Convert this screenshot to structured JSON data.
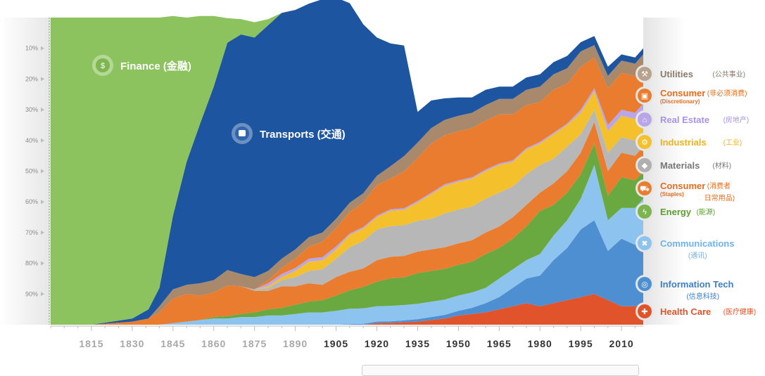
{
  "chart_data": {
    "type": "area",
    "title": "",
    "xlabel": "",
    "ylabel": "",
    "x_ticks": [
      "1815",
      "1830",
      "1845",
      "1860",
      "1875",
      "1890",
      "1905",
      "1920",
      "1935",
      "1950",
      "1965",
      "1980",
      "1995",
      "2010"
    ],
    "y_ticks": [
      "10%",
      "20%",
      "30%",
      "40%",
      "50%",
      "60%",
      "70%",
      "80%",
      "90%"
    ],
    "ylim": [
      0,
      100
    ],
    "xlim": [
      1800,
      2018
    ],
    "x": [
      1800,
      1815,
      1830,
      1836,
      1840,
      1845,
      1850,
      1855,
      1860,
      1865,
      1870,
      1875,
      1880,
      1885,
      1890,
      1895,
      1900,
      1905,
      1910,
      1915,
      1920,
      1925,
      1930,
      1935,
      1940,
      1945,
      1950,
      1955,
      1960,
      1965,
      1970,
      1975,
      1980,
      1985,
      1990,
      1995,
      2000,
      2005,
      2010,
      2015,
      2018
    ],
    "series": [
      {
        "name": "Health Care",
        "values": [
          0,
          0,
          0,
          0,
          0,
          0,
          0,
          0,
          0,
          0,
          0,
          0,
          0,
          0,
          0,
          0,
          0,
          0,
          0,
          0,
          0.5,
          0.6,
          0.8,
          1,
          1.5,
          2,
          3,
          3.5,
          4,
          5,
          6,
          7,
          6,
          7,
          8,
          9,
          10,
          8,
          6,
          6,
          7
        ]
      },
      {
        "name": "Information Tech",
        "values": [
          0,
          0,
          0,
          0,
          0,
          0,
          0,
          0,
          0,
          0,
          0,
          0,
          0,
          0,
          0,
          0,
          0,
          0,
          0.2,
          0.3,
          0.5,
          0.5,
          0.6,
          0.8,
          1,
          1.2,
          1.5,
          2,
          3,
          4,
          6,
          8,
          10,
          14,
          17,
          22,
          24,
          16,
          22,
          20,
          22
        ]
      },
      {
        "name": "Communications",
        "values": [
          0,
          0,
          0,
          0,
          0,
          0.5,
          1,
          1.5,
          2,
          2,
          2.5,
          2.5,
          3,
          3,
          3.5,
          4,
          4,
          4.5,
          5,
          5,
          5,
          5,
          5,
          5,
          5,
          5,
          5,
          5,
          5,
          6,
          6,
          6,
          7,
          8,
          9,
          10,
          18,
          10,
          10,
          12,
          12
        ]
      },
      {
        "name": "Energy",
        "values": [
          0,
          0,
          0,
          0,
          0,
          0,
          0,
          0,
          0.5,
          0.8,
          1,
          1.5,
          2,
          2.5,
          3,
          3.5,
          4,
          5,
          6,
          7,
          8,
          9,
          9,
          10,
          10,
          10,
          10,
          10,
          11,
          10,
          10,
          11,
          14,
          10,
          9,
          8,
          7,
          8,
          10,
          9,
          9
        ]
      },
      {
        "name": "Consumer (Staples)",
        "values": [
          0,
          0,
          1,
          2,
          4,
          8,
          9,
          8,
          8,
          10,
          9,
          7,
          6,
          7,
          6,
          6,
          5,
          6,
          6,
          6,
          7,
          7,
          7,
          7,
          7,
          7,
          7,
          7,
          7,
          7,
          7,
          7,
          6,
          7,
          7,
          7,
          7,
          8,
          8,
          8,
          8
        ]
      },
      {
        "name": "Materials",
        "values": [
          0,
          0,
          0,
          0,
          0,
          0,
          0,
          0,
          0,
          0,
          0,
          0.5,
          1,
          2,
          3,
          4,
          5,
          6,
          8,
          9,
          10,
          10,
          10,
          10,
          10,
          11,
          11,
          11,
          11,
          11,
          10,
          10,
          9,
          8,
          8,
          6,
          4,
          6,
          5,
          5,
          5
        ]
      },
      {
        "name": "Industrials",
        "values": [
          0,
          0,
          0,
          0,
          0,
          0,
          0,
          0,
          0,
          0,
          0,
          0,
          0.5,
          1,
          2,
          3,
          3,
          3,
          4,
          4,
          4,
          5,
          5,
          6,
          8,
          9,
          9,
          9,
          9,
          9,
          8,
          8,
          7,
          8,
          7,
          7,
          6,
          7,
          7,
          7,
          7
        ]
      },
      {
        "name": "Real Estate",
        "values": [
          0,
          0,
          0,
          0,
          0,
          0,
          0,
          0,
          0,
          0,
          0,
          0,
          1,
          1,
          1,
          1,
          1,
          1,
          0.5,
          0.5,
          0.5,
          0.5,
          0.5,
          0.5,
          0.5,
          0.5,
          0.5,
          0.5,
          0.5,
          0.5,
          0.5,
          0.5,
          0.5,
          0.5,
          0.5,
          1,
          1,
          2,
          2,
          2,
          2
        ]
      },
      {
        "name": "Consumer (Discretionary)",
        "values": [
          0,
          0,
          0,
          0,
          0,
          0,
          0,
          0,
          0,
          0,
          0,
          0,
          1,
          2,
          3,
          4,
          5,
          6,
          7,
          8,
          10,
          10,
          12,
          14,
          16,
          16,
          16,
          16,
          16,
          16,
          15,
          14,
          13,
          14,
          13,
          14,
          10,
          12,
          12,
          12,
          12
        ]
      },
      {
        "name": "Utilities",
        "values": [
          0,
          0,
          0,
          0,
          2,
          3,
          3,
          4,
          4,
          5,
          4,
          4,
          3,
          3,
          3,
          3,
          3,
          3,
          3,
          3,
          3,
          4,
          5,
          5,
          5,
          5,
          5,
          5,
          5,
          5,
          5,
          5,
          5,
          5,
          5,
          5,
          4,
          4,
          4,
          4,
          4
        ]
      },
      {
        "name": "Transports",
        "values": [
          0,
          0,
          1,
          3,
          6,
          24,
          40,
          52,
          63,
          74,
          78,
          78,
          80,
          80,
          78,
          76,
          76,
          72,
          65,
          55,
          45,
          40,
          36,
          10,
          9,
          7,
          6,
          5,
          5,
          4,
          4,
          4,
          4,
          4,
          4,
          3,
          3,
          3,
          2,
          2,
          2
        ]
      },
      {
        "name": "Finance",
        "values": [
          100,
          100,
          98,
          95,
          88,
          65,
          47,
          35,
          23,
          8,
          5,
          5,
          2,
          0,
          0,
          0,
          0,
          0,
          0,
          0,
          0,
          0,
          0,
          0,
          0,
          0,
          0,
          0,
          0,
          0,
          0,
          0,
          0,
          0,
          0,
          0,
          0,
          0,
          0,
          0,
          0
        ]
      }
    ],
    "colors": {
      "Health Care": "#e1542b",
      "Information Tech": "#4d8fd1",
      "Communications": "#8cc3ef",
      "Energy": "#6aa93f",
      "Consumer (Staples)": "#ea7c2f",
      "Materials": "#b7b7b7",
      "Industrials": "#f4c12d",
      "Real Estate": "#b9a6e9",
      "Consumer (Discretionary)": "#ea7c2f",
      "Utilities": "#a8896b",
      "Transports": "#1d55a0",
      "Finance": "#8dc35f"
    }
  },
  "band_labels": {
    "finance": "Finance (金融)",
    "transports": "Transports (交通)"
  },
  "legend": [
    {
      "key": "utilities",
      "icon": "faucet-icon",
      "glyph": "⚒",
      "name": "Utilities",
      "cn": "(公共事业)",
      "sub": "",
      "color": "#8a7a6a",
      "icon_color": "#b8a28d"
    },
    {
      "key": "consumer-discretionary",
      "icon": "shopping-bag-icon",
      "glyph": "▣",
      "name": "Consumer",
      "sub": "(Discretionary)",
      "cn": "(非必须消费)",
      "color": "#e46d1f",
      "icon_color": "#ea7c2f"
    },
    {
      "key": "real-estate",
      "icon": "building-icon",
      "glyph": "⌂",
      "name": "Real Estate",
      "cn": "(房地产)",
      "sub": "",
      "color": "#a894e4",
      "icon_color": "#b9a6e9"
    },
    {
      "key": "industrials",
      "icon": "factory-icon",
      "glyph": "⚙",
      "name": "Industrials",
      "cn": "(工业)",
      "sub": "",
      "color": "#f0b21a",
      "icon_color": "#f4c12d"
    },
    {
      "key": "materials",
      "icon": "diamond-icon",
      "glyph": "◆",
      "name": "Materials",
      "cn": "(材料)",
      "sub": "",
      "color": "#777777",
      "icon_color": "#b0b0b0"
    },
    {
      "key": "consumer-staples",
      "icon": "cart-icon",
      "glyph": "⛟",
      "name": "Consumer",
      "sub": "(Staples)",
      "cn": "(消费者",
      "cn2": "日常用品)",
      "color": "#e46d1f",
      "icon_color": "#ea7c2f"
    },
    {
      "key": "energy",
      "icon": "lightning-icon",
      "glyph": "ϟ",
      "name": "Energy",
      "cn": "(能源)",
      "sub": "",
      "color": "#5f9d33",
      "icon_color": "#7cb44f"
    },
    {
      "key": "communications",
      "icon": "satellite-icon",
      "glyph": "✖",
      "name": "Communications",
      "cn": "(通讯)",
      "sub": "",
      "color": "#6eb3ea",
      "icon_color": "#8cc3ef"
    },
    {
      "key": "information-tech",
      "icon": "chip-icon",
      "glyph": "◎",
      "name": "Information Tech",
      "cn": "(信息科技)",
      "sub": "",
      "color": "#3d7fc7",
      "icon_color": "#4d8fd1"
    },
    {
      "key": "health-care",
      "icon": "cross-icon",
      "glyph": "✚",
      "name": "Health Care",
      "cn": "(医疗健康)",
      "sub": "",
      "color": "#e1542b",
      "icon_color": "#e1542b"
    }
  ]
}
